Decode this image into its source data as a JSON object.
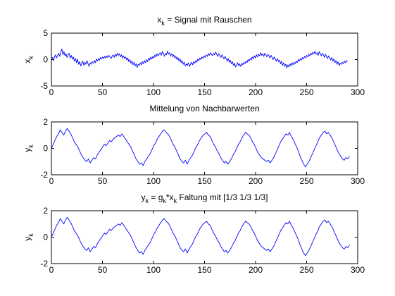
{
  "chart_data": [
    {
      "type": "line",
      "title": "x_k = Signal mit Rauschen",
      "title_parts": {
        "base": "x",
        "sub": "k",
        "rest": " = Signal mit Rauschen"
      },
      "ylabel": {
        "base": "x",
        "sub": "k"
      },
      "xlim": [
        0,
        300
      ],
      "ylim": [
        -5,
        5
      ],
      "xticks": [
        0,
        50,
        100,
        150,
        200,
        250,
        300
      ],
      "yticks": [
        -5,
        0,
        5
      ],
      "grid": false,
      "line_color": "#0000ff",
      "series": [
        {
          "x_range": [
            0,
            290
          ],
          "values": [
            0.1,
            0.4,
            -0.2,
            0.5,
            0.9,
            0.3,
            0.8,
            1.2,
            0.6,
            1.4,
            2.0,
            0.9,
            1.5,
            0.7,
            1.1,
            0.4,
            0.9,
            1.2,
            0.3,
            0.8,
            0.1,
            0.5,
            -0.3,
            0.2,
            -0.6,
            0.1,
            -0.9,
            -0.4,
            -1.2,
            -0.7,
            -0.3,
            -1.1,
            -0.5,
            -0.9,
            -0.2,
            -0.8,
            -1.3,
            -0.6,
            -0.9,
            -0.4,
            -0.7,
            -0.2,
            -0.6,
            0.1,
            -0.3,
            0.2,
            -0.1,
            0.4,
            0.1,
            0.5,
            0.2,
            0.6,
            0.3,
            0.7,
            0.4,
            0.8,
            0.5,
            0.2,
            0.6,
            0.9,
            0.4,
            1.0,
            0.6,
            1.2,
            0.8,
            1.1,
            0.5,
            0.9,
            0.3,
            0.7,
            0.2,
            0.5,
            -0.1,
            0.3,
            -0.4,
            0.0,
            -0.7,
            -0.3,
            -1.0,
            -0.5,
            -1.2,
            -0.8,
            -1.5,
            -0.9,
            -1.1,
            -0.6,
            -1.0,
            -0.4,
            -0.8,
            -0.2,
            -0.6,
            0.0,
            -0.4,
            0.3,
            -0.1,
            0.5,
            0.1,
            0.6,
            0.3,
            0.9,
            0.5,
            1.1,
            0.7,
            1.0,
            1.3,
            0.8,
            1.5,
            1.1,
            0.6,
            1.2,
            0.9,
            1.6,
            1.0,
            1.3,
            0.7,
            1.1,
            0.5,
            0.9,
            0.3,
            0.6,
            0.0,
            0.4,
            -0.3,
            0.1,
            -0.6,
            -0.2,
            -0.9,
            -0.5,
            -1.2,
            -0.8,
            -1.1,
            -0.6,
            -1.3,
            -0.9,
            -0.5,
            -1.0,
            -0.4,
            -0.7,
            -0.2,
            -0.5,
            0.1,
            -0.2,
            0.3,
            0.0,
            0.5,
            0.2,
            0.7,
            0.4,
            0.9,
            0.6,
            1.1,
            0.8,
            1.3,
            1.0,
            0.7,
            1.2,
            0.9,
            1.4,
            1.0,
            0.6,
            1.1,
            0.8,
            0.4,
            0.9,
            0.5,
            0.1,
            0.6,
            0.2,
            -0.3,
            0.2,
            -0.5,
            -0.1,
            -0.8,
            -0.4,
            -1.1,
            -0.7,
            -1.4,
            -1.0,
            -0.6,
            -1.2,
            -0.8,
            -1.3,
            -0.7,
            -1.0,
            -0.5,
            -0.8,
            -0.3,
            -0.6,
            0.0,
            -0.3,
            0.2,
            -0.1,
            0.5,
            0.1,
            0.7,
            0.3,
            0.9,
            0.5,
            1.0,
            0.7,
            1.3,
            0.8,
            1.1,
            0.6,
            1.2,
            0.9,
            0.5,
            1.0,
            0.7,
            0.3,
            0.8,
            0.4,
            0.0,
            0.5,
            0.1,
            -0.3,
            0.2,
            -0.4,
            -0.1,
            -0.8,
            -0.3,
            -1.1,
            -0.6,
            -1.3,
            -0.9,
            -1.6,
            -1.0,
            -1.4,
            -0.8,
            -1.2,
            -0.6,
            -1.0,
            -0.5,
            -0.8,
            -0.3,
            -0.6,
            0.0,
            -0.3,
            0.2,
            -0.1,
            0.4,
            0.1,
            0.6,
            0.3,
            0.8,
            0.5,
            1.0,
            0.7,
            1.2,
            0.9,
            1.4,
            1.1,
            1.6,
            1.0,
            1.3,
            0.8,
            1.5,
            1.1,
            0.7,
            1.2,
            0.9,
            0.4,
            1.0,
            0.6,
            0.2,
            0.7,
            0.3,
            -0.1,
            0.4,
            -0.3,
            0.1,
            -0.6,
            -0.2,
            -0.9,
            -0.4,
            -1.1,
            -0.7,
            -0.9,
            -0.5,
            -0.8,
            -0.3,
            -0.6,
            -0.2,
            -0.4
          ]
        }
      ]
    },
    {
      "type": "line",
      "title": "Mittelung von Nachbarwerten",
      "ylabel": {
        "base": "y",
        "sub": "k"
      },
      "xlim": [
        0,
        300
      ],
      "ylim": [
        -2,
        2
      ],
      "xticks": [
        0,
        50,
        100,
        150,
        200,
        250,
        300
      ],
      "yticks": [
        -2,
        0,
        2
      ],
      "grid": false,
      "line_color": "#0000ff",
      "series": [
        {
          "x_range": [
            0,
            292
          ],
          "values": [
            0.0,
            0.3,
            0.6,
            0.9,
            1.1,
            1.4,
            1.2,
            1.0,
            1.3,
            1.5,
            1.3,
            1.1,
            0.8,
            0.5,
            0.3,
            0.1,
            -0.2,
            -0.5,
            -0.7,
            -0.9,
            -1.0,
            -0.8,
            -1.1,
            -0.9,
            -0.7,
            -0.8,
            -0.5,
            -0.3,
            -0.1,
            0.1,
            0.3,
            0.2,
            0.4,
            0.6,
            0.5,
            0.7,
            0.8,
            0.9,
            1.0,
            0.9,
            1.1,
            0.9,
            0.7,
            0.5,
            0.3,
            0.1,
            -0.2,
            -0.5,
            -0.8,
            -1.0,
            -1.2,
            -1.1,
            -1.3,
            -1.0,
            -0.8,
            -0.6,
            -0.4,
            -0.1,
            0.2,
            0.4,
            0.7,
            0.9,
            1.1,
            1.3,
            1.4,
            1.2,
            1.1,
            0.9,
            0.6,
            0.3,
            0.1,
            -0.2,
            -0.5,
            -0.8,
            -1.0,
            -1.1,
            -0.9,
            -1.2,
            -0.9,
            -0.7,
            -0.5,
            -0.2,
            0.1,
            0.3,
            0.6,
            0.8,
            1.0,
            1.1,
            1.2,
            1.0,
            0.9,
            0.6,
            0.3,
            0.1,
            -0.2,
            -0.4,
            -0.7,
            -0.9,
            -1.1,
            -1.0,
            -1.2,
            -1.0,
            -0.8,
            -0.5,
            -0.3,
            0.0,
            0.3,
            0.5,
            0.8,
            1.0,
            1.2,
            1.1,
            1.0,
            0.8,
            0.5,
            0.3,
            0.0,
            -0.3,
            -0.5,
            -0.7,
            -0.8,
            -0.9,
            -1.0,
            -0.9,
            -1.1,
            -0.9,
            -0.7,
            -0.4,
            -0.1,
            0.2,
            0.5,
            0.7,
            0.9,
            1.1,
            1.0,
            1.2,
            0.9,
            0.7,
            0.4,
            0.1,
            -0.2,
            -0.6,
            -0.9,
            -1.2,
            -1.4,
            -1.2,
            -1.0,
            -0.7,
            -0.4,
            -0.1,
            0.2,
            0.5,
            0.8,
            1.0,
            1.2,
            1.3,
            1.1,
            1.2,
            1.0,
            0.8,
            0.5,
            0.2,
            -0.1,
            -0.4,
            -0.6,
            -0.8,
            -0.9,
            -0.7,
            -0.8,
            -0.6
          ]
        }
      ]
    },
    {
      "type": "line",
      "title": "y_k = g_k*x_k    Faltung mit [1/3 1/3 1/3]",
      "title_parts": {
        "y": "y",
        "k1": "k",
        "eq": " = g",
        "k2": "k",
        "star": "*x",
        "k3": "k",
        "rest": "    Faltung mit [1/3 1/3 1/3]"
      },
      "ylabel": {
        "base": "y",
        "sub": "k"
      },
      "xlim": [
        0,
        300
      ],
      "ylim": [
        -2,
        2
      ],
      "xticks": [
        0,
        50,
        100,
        150,
        200,
        250,
        300
      ],
      "yticks": [
        -2,
        0,
        2
      ],
      "grid": false,
      "line_color": "#0000ff",
      "series": [
        {
          "x_range": [
            0,
            292
          ],
          "values": [
            0.0,
            0.3,
            0.6,
            0.9,
            1.1,
            1.4,
            1.2,
            1.0,
            1.3,
            1.5,
            1.3,
            1.1,
            0.8,
            0.5,
            0.3,
            0.1,
            -0.2,
            -0.5,
            -0.7,
            -0.9,
            -1.0,
            -0.8,
            -1.1,
            -0.9,
            -0.7,
            -0.8,
            -0.5,
            -0.3,
            -0.1,
            0.1,
            0.3,
            0.2,
            0.4,
            0.6,
            0.5,
            0.7,
            0.8,
            0.9,
            1.0,
            0.9,
            1.1,
            0.9,
            0.7,
            0.5,
            0.3,
            0.1,
            -0.2,
            -0.5,
            -0.8,
            -1.0,
            -1.2,
            -1.1,
            -1.3,
            -1.0,
            -0.8,
            -0.6,
            -0.4,
            -0.1,
            0.2,
            0.4,
            0.7,
            0.9,
            1.1,
            1.3,
            1.4,
            1.2,
            1.1,
            0.9,
            0.6,
            0.3,
            0.1,
            -0.2,
            -0.5,
            -0.8,
            -1.0,
            -1.1,
            -0.9,
            -1.2,
            -0.9,
            -0.7,
            -0.5,
            -0.2,
            0.1,
            0.3,
            0.6,
            0.8,
            1.0,
            1.1,
            1.2,
            1.0,
            0.9,
            0.6,
            0.3,
            0.1,
            -0.2,
            -0.4,
            -0.7,
            -0.9,
            -1.1,
            -1.0,
            -1.2,
            -1.0,
            -0.8,
            -0.5,
            -0.3,
            0.0,
            0.3,
            0.5,
            0.8,
            1.0,
            1.2,
            1.1,
            1.0,
            0.8,
            0.5,
            0.3,
            0.0,
            -0.3,
            -0.5,
            -0.7,
            -0.8,
            -0.9,
            -1.0,
            -0.9,
            -1.1,
            -0.9,
            -0.7,
            -0.4,
            -0.1,
            0.2,
            0.5,
            0.7,
            0.9,
            1.1,
            1.0,
            1.2,
            0.9,
            0.7,
            0.4,
            0.1,
            -0.2,
            -0.6,
            -0.9,
            -1.2,
            -1.4,
            -1.2,
            -1.0,
            -0.7,
            -0.4,
            -0.1,
            0.2,
            0.5,
            0.8,
            1.0,
            1.2,
            1.3,
            1.1,
            1.2,
            1.0,
            0.8,
            0.5,
            0.2,
            -0.1,
            -0.4,
            -0.6,
            -0.8,
            -0.9,
            -0.7,
            -0.8,
            -0.6
          ]
        }
      ]
    }
  ]
}
